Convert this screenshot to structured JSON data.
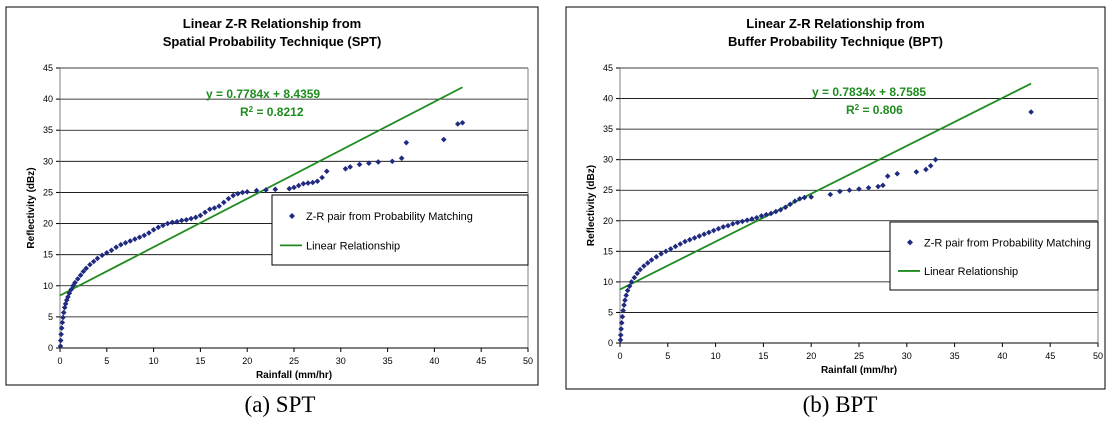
{
  "chart_data": [
    {
      "type": "scatter",
      "title": [
        "Linear Z-R Relationship from",
        "Spatial Probability Technique (SPT)"
      ],
      "xlabel": "Rainfall (mm/hr)",
      "ylabel": "Reflectivity (dBz)",
      "xlim": [
        0,
        50
      ],
      "ylim": [
        0,
        45
      ],
      "x_ticks": [
        "0",
        "5",
        "10",
        "15",
        "20",
        "25",
        "30",
        "35",
        "40",
        "45",
        "50"
      ],
      "y_ticks": [
        "0",
        "5",
        "10",
        "15",
        "20",
        "25",
        "30",
        "35",
        "40",
        "45"
      ],
      "grid": "horizontal",
      "legend_position": "right",
      "series": [
        {
          "name": "Z-R pair from Probability Matching",
          "kind": "points",
          "color": "#1f2a80",
          "points": [
            [
              0.05,
              0.3
            ],
            [
              0.08,
              1.2
            ],
            [
              0.12,
              2.2
            ],
            [
              0.18,
              3.2
            ],
            [
              0.25,
              4.1
            ],
            [
              0.32,
              4.9
            ],
            [
              0.4,
              5.7
            ],
            [
              0.5,
              6.5
            ],
            [
              0.6,
              7.1
            ],
            [
              0.72,
              7.7
            ],
            [
              0.85,
              8.2
            ],
            [
              1.0,
              8.8
            ],
            [
              1.2,
              9.4
            ],
            [
              1.4,
              10.0
            ],
            [
              1.6,
              10.5
            ],
            [
              1.9,
              11.1
            ],
            [
              2.2,
              11.7
            ],
            [
              2.5,
              12.3
            ],
            [
              2.8,
              12.8
            ],
            [
              3.2,
              13.4
            ],
            [
              3.6,
              13.9
            ],
            [
              4.0,
              14.4
            ],
            [
              4.5,
              14.9
            ],
            [
              5.0,
              15.3
            ],
            [
              5.5,
              15.7
            ],
            [
              6.0,
              16.2
            ],
            [
              6.5,
              16.6
            ],
            [
              7.0,
              16.9
            ],
            [
              7.5,
              17.2
            ],
            [
              8.0,
              17.5
            ],
            [
              8.5,
              17.8
            ],
            [
              9.0,
              18.1
            ],
            [
              9.5,
              18.5
            ],
            [
              10.0,
              19.0
            ],
            [
              10.5,
              19.4
            ],
            [
              11.0,
              19.7
            ],
            [
              11.5,
              20.0
            ],
            [
              12.0,
              20.2
            ],
            [
              12.5,
              20.3
            ],
            [
              13.0,
              20.5
            ],
            [
              13.5,
              20.6
            ],
            [
              14.0,
              20.8
            ],
            [
              14.5,
              21.0
            ],
            [
              15.0,
              21.3
            ],
            [
              15.5,
              21.8
            ],
            [
              16.0,
              22.3
            ],
            [
              16.5,
              22.5
            ],
            [
              17.0,
              22.8
            ],
            [
              17.5,
              23.4
            ],
            [
              18.0,
              24.0
            ],
            [
              18.5,
              24.5
            ],
            [
              19.0,
              24.8
            ],
            [
              19.5,
              25.0
            ],
            [
              20.0,
              25.1
            ],
            [
              21.0,
              25.3
            ],
            [
              22.0,
              25.4
            ],
            [
              23.0,
              25.5
            ],
            [
              24.5,
              25.6
            ],
            [
              25.0,
              25.8
            ],
            [
              25.5,
              26.1
            ],
            [
              26.0,
              26.4
            ],
            [
              26.5,
              26.5
            ],
            [
              27.0,
              26.6
            ],
            [
              27.5,
              26.8
            ],
            [
              28.0,
              27.4
            ],
            [
              28.5,
              28.4
            ],
            [
              30.5,
              28.8
            ],
            [
              31.0,
              29.1
            ],
            [
              32.0,
              29.5
            ],
            [
              33.0,
              29.7
            ],
            [
              34.0,
              29.9
            ],
            [
              35.5,
              30.0
            ],
            [
              36.5,
              30.5
            ],
            [
              37.0,
              33.0
            ],
            [
              41.0,
              33.5
            ],
            [
              42.5,
              36.0
            ],
            [
              43.0,
              36.2
            ]
          ]
        },
        {
          "name": "Linear Relationship",
          "kind": "line",
          "color": "#1e8c1e",
          "slope": 0.7784,
          "intercept": 8.4359,
          "x_range": [
            0,
            43
          ]
        }
      ],
      "annotation": {
        "equation": "y = 0.7784x + 8.4359",
        "r2_prefix": "R",
        "r2_exp": "2",
        "r2_suffix": " = 0.8212"
      }
    },
    {
      "type": "scatter",
      "title": [
        "Linear Z-R Relationship from",
        "Buffer Probability Technique (BPT)"
      ],
      "xlabel": "Rainfall (mm/hr)",
      "ylabel": "Reflectivity (dBz)",
      "xlim": [
        0,
        50
      ],
      "ylim": [
        0,
        45
      ],
      "x_ticks": [
        "0",
        "5",
        "10",
        "15",
        "20",
        "25",
        "30",
        "35",
        "40",
        "45",
        "50"
      ],
      "y_ticks": [
        "0",
        "5",
        "10",
        "15",
        "20",
        "25",
        "30",
        "35",
        "40",
        "45"
      ],
      "grid": "horizontal",
      "legend_position": "right",
      "series": [
        {
          "name": "Z-R pair from Probability Matching",
          "kind": "points",
          "color": "#1f2a80",
          "points": [
            [
              0.05,
              0.5
            ],
            [
              0.08,
              1.3
            ],
            [
              0.12,
              2.3
            ],
            [
              0.18,
              3.3
            ],
            [
              0.25,
              4.3
            ],
            [
              0.33,
              5.3
            ],
            [
              0.42,
              6.2
            ],
            [
              0.52,
              7.0
            ],
            [
              0.65,
              7.8
            ],
            [
              0.8,
              8.6
            ],
            [
              1.0,
              9.3
            ],
            [
              1.2,
              10.0
            ],
            [
              1.5,
              10.7
            ],
            [
              1.8,
              11.4
            ],
            [
              2.1,
              12.0
            ],
            [
              2.5,
              12.6
            ],
            [
              2.9,
              13.1
            ],
            [
              3.3,
              13.6
            ],
            [
              3.8,
              14.1
            ],
            [
              4.3,
              14.6
            ],
            [
              4.8,
              15.0
            ],
            [
              5.3,
              15.4
            ],
            [
              5.8,
              15.8
            ],
            [
              6.3,
              16.2
            ],
            [
              6.8,
              16.6
            ],
            [
              7.3,
              16.9
            ],
            [
              7.8,
              17.2
            ],
            [
              8.3,
              17.5
            ],
            [
              8.8,
              17.8
            ],
            [
              9.3,
              18.1
            ],
            [
              9.8,
              18.4
            ],
            [
              10.3,
              18.7
            ],
            [
              10.8,
              19.0
            ],
            [
              11.3,
              19.2
            ],
            [
              11.8,
              19.5
            ],
            [
              12.3,
              19.7
            ],
            [
              12.8,
              19.9
            ],
            [
              13.3,
              20.1
            ],
            [
              13.8,
              20.3
            ],
            [
              14.3,
              20.5
            ],
            [
              14.8,
              20.8
            ],
            [
              15.3,
              21.0
            ],
            [
              15.8,
              21.2
            ],
            [
              16.3,
              21.5
            ],
            [
              16.8,
              21.8
            ],
            [
              17.3,
              22.2
            ],
            [
              17.8,
              22.7
            ],
            [
              18.3,
              23.2
            ],
            [
              18.8,
              23.6
            ],
            [
              19.3,
              23.8
            ],
            [
              20.0,
              23.9
            ],
            [
              22.0,
              24.3
            ],
            [
              23.0,
              24.8
            ],
            [
              24.0,
              25.0
            ],
            [
              25.0,
              25.2
            ],
            [
              26.0,
              25.4
            ],
            [
              27.0,
              25.6
            ],
            [
              27.5,
              25.8
            ],
            [
              28.0,
              27.3
            ],
            [
              29.0,
              27.7
            ],
            [
              31.0,
              28.0
            ],
            [
              32.0,
              28.4
            ],
            [
              32.5,
              29.0
            ],
            [
              33.0,
              30.0
            ],
            [
              43.0,
              37.8
            ]
          ]
        },
        {
          "name": "Linear Relationship",
          "kind": "line",
          "color": "#1e8c1e",
          "slope": 0.7834,
          "intercept": 8.7585,
          "x_range": [
            0,
            43
          ]
        }
      ],
      "annotation": {
        "equation": "y = 0.7834x + 8.7585",
        "r2_prefix": "R",
        "r2_exp": "2",
        "r2_suffix": " = 0.806"
      }
    }
  ],
  "captions": [
    "(a) SPT",
    "(b) BPT"
  ]
}
